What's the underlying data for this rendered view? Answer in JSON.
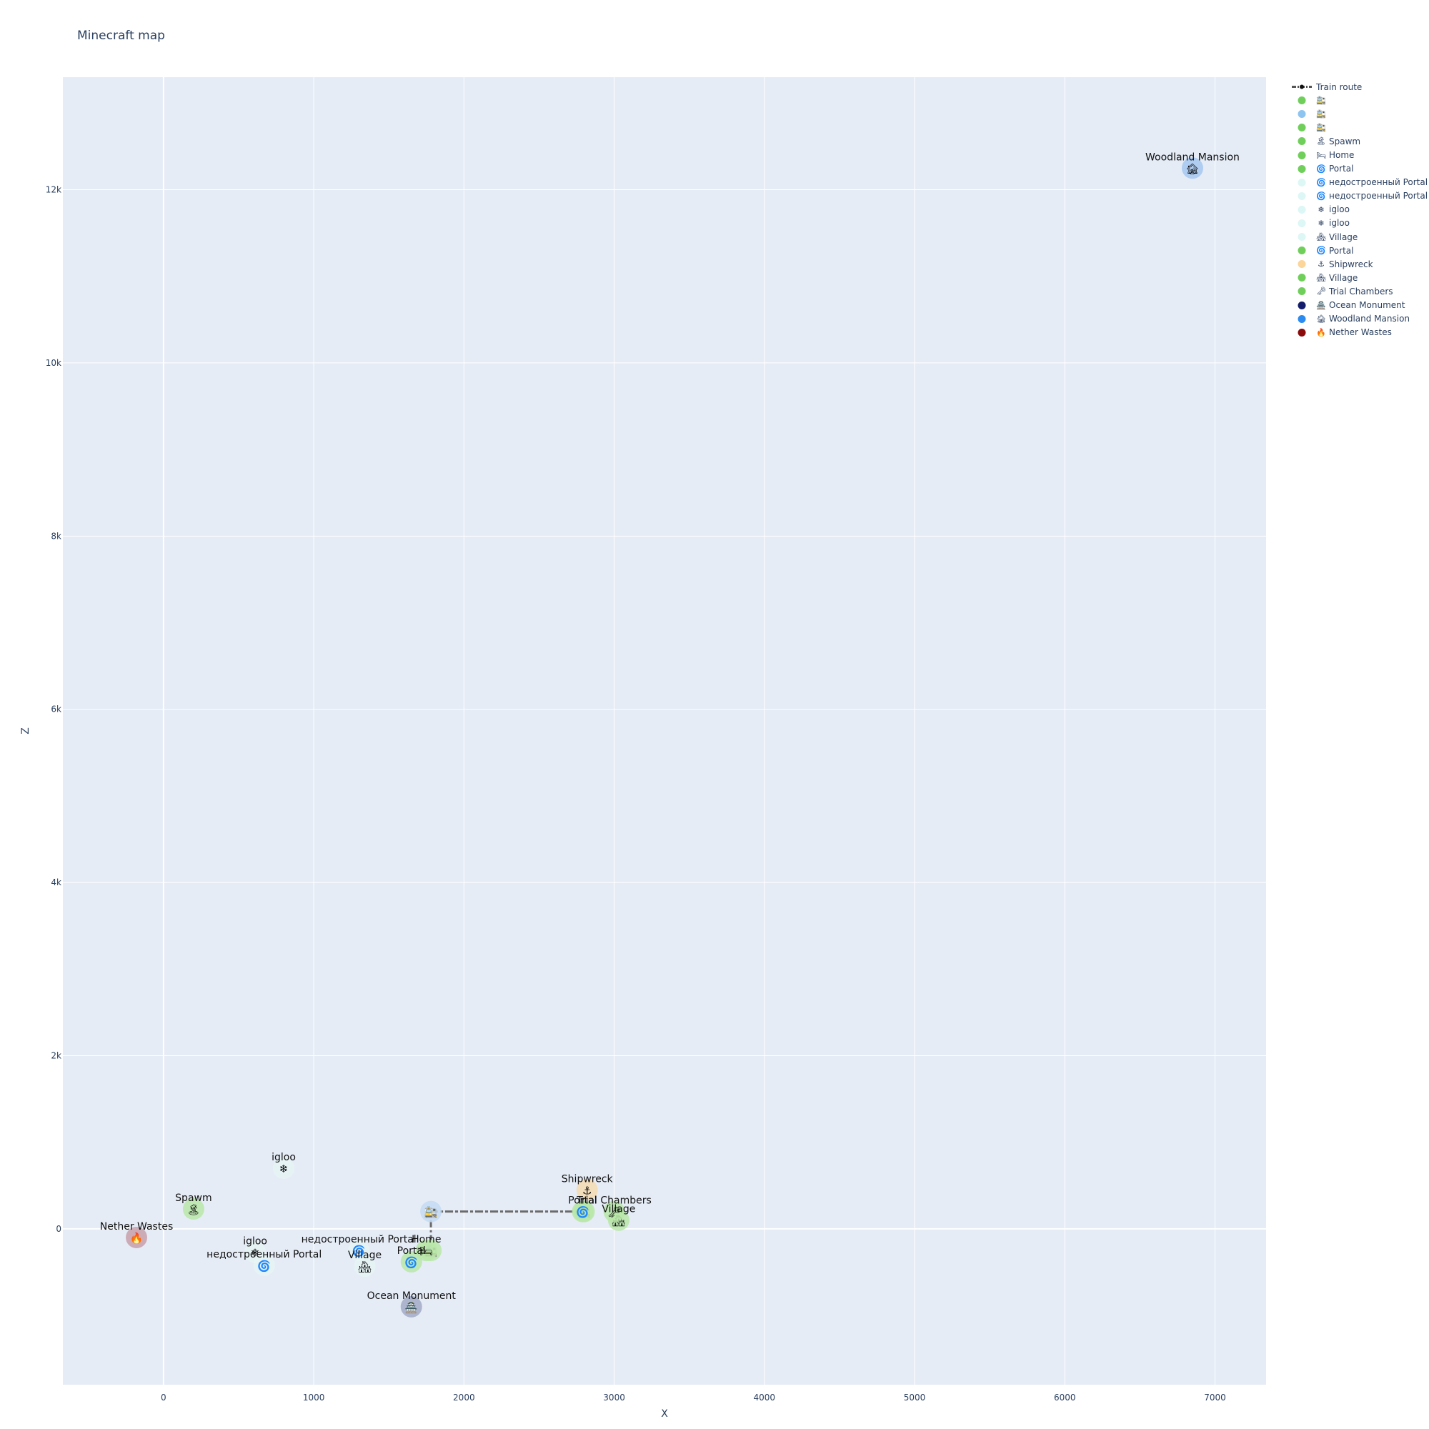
{
  "chart_data": {
    "type": "scatter",
    "title": "Minecraft map",
    "xlabel": "X",
    "ylabel": "Z",
    "xlim": [
      -670,
      7340
    ],
    "ylim": [
      -1800,
      13300
    ],
    "x_ticks": [
      0,
      1000,
      2000,
      3000,
      4000,
      5000,
      6000,
      7000
    ],
    "x_tick_labels": [
      "0",
      "1000",
      "2000",
      "3000",
      "4000",
      "5000",
      "6000",
      "7000"
    ],
    "y_ticks": [
      0,
      2000,
      4000,
      6000,
      8000,
      10000,
      12000
    ],
    "y_tick_labels": [
      "0",
      "2k",
      "4k",
      "6k",
      "8k",
      "10k",
      "12k"
    ],
    "grid": true,
    "legend_position": "right",
    "plot_background": "#e5ecf6",
    "train_route": {
      "name": "Train route",
      "points": [
        [
          1780,
          200
        ],
        [
          2800,
          200
        ],
        [
          1780,
          200
        ],
        [
          1780,
          -230
        ],
        [
          1700,
          -230
        ]
      ]
    },
    "series": [
      {
        "name": "",
        "icon": "🚉",
        "legend_color": "#6fcf5a",
        "color": "#b9e8a8",
        "x": 1780,
        "z": -250,
        "label": ""
      },
      {
        "name": "",
        "icon": "🚉",
        "legend_color": "#8ec4f0",
        "color": "#c4dcf3",
        "x": 1780,
        "z": 200,
        "label": ""
      },
      {
        "name": "",
        "icon": "🚉",
        "legend_color": "#6fcf5a",
        "color": "#b9e8a8",
        "x": 2800,
        "z": 200,
        "label": ""
      },
      {
        "name": "Spawm",
        "icon": "🏝",
        "legend_color": "#6fcf5a",
        "color": "#b9e8a8",
        "x": 200,
        "z": 230,
        "label": "Spawm"
      },
      {
        "name": "Home",
        "icon": "🛏",
        "legend_color": "#6fcf5a",
        "color": "#b9e8a8",
        "x": 1750,
        "z": -250,
        "label": "Home"
      },
      {
        "name": "Portal",
        "icon": "🌀",
        "legend_color": "#6fcf5a",
        "color": "#b9e8a8",
        "x": 1650,
        "z": -380,
        "label": "Portal"
      },
      {
        "name": "недостроенный Portal",
        "icon": "🌀",
        "legend_color": "#dcf7f5",
        "color": "#e6f5f4",
        "x": 1300,
        "z": -250,
        "label": "недостроенный Portal"
      },
      {
        "name": "недостроенный Portal",
        "icon": "🌀",
        "legend_color": "#dcf7f5",
        "color": "#e6f5f4",
        "x": 670,
        "z": -420,
        "label": "недостроенный Portal"
      },
      {
        "name": "igloo",
        "icon": "❄",
        "legend_color": "#dcf7f5",
        "color": "#e6f5f4",
        "x": 800,
        "z": 700,
        "label": "igloo"
      },
      {
        "name": "igloo",
        "icon": "❄",
        "legend_color": "#dcf7f5",
        "color": "#e6f5f4",
        "x": 610,
        "z": -270,
        "label": "igloo"
      },
      {
        "name": "Village",
        "icon": "🏘",
        "legend_color": "#dcf7f5",
        "color": "#e6f5f4",
        "x": 1340,
        "z": -430,
        "label": "Village"
      },
      {
        "name": "Portal",
        "icon": "🌀",
        "legend_color": "#6fcf5a",
        "color": "#b9e8a8",
        "x": 2790,
        "z": 200,
        "label": "Portal"
      },
      {
        "name": "Shipwreck",
        "icon": "⚓",
        "legend_color": "#fbd59a",
        "color": "#f5dcb0",
        "x": 2820,
        "z": 450,
        "label": "Shipwreck"
      },
      {
        "name": "Village",
        "icon": "🏘",
        "legend_color": "#6fcf5a",
        "color": "#b9e8a8",
        "x": 3030,
        "z": 100,
        "label": "Village"
      },
      {
        "name": "Trial Chambers",
        "icon": "🗝",
        "legend_color": "#6fcf5a",
        "color": "#b9e8a8",
        "x": 3000,
        "z": 200,
        "label": "Trial Chambers"
      },
      {
        "name": "Ocean Monument",
        "icon": "🏯",
        "legend_color": "#121d6b",
        "color": "#a2abc6",
        "x": 1650,
        "z": -900,
        "label": "Ocean Monument"
      },
      {
        "name": "Woodland Mansion",
        "icon": "🏚",
        "legend_color": "#2b8bf0",
        "color": "#a6c8f0",
        "x": 6850,
        "z": 12250,
        "label": "Woodland Mansion"
      },
      {
        "name": "Nether Wastes",
        "icon": "🔥",
        "legend_color": "#8b0a0a",
        "color": "#c8a0ac",
        "x": -180,
        "z": -100,
        "label": "Nether Wastes"
      }
    ]
  }
}
